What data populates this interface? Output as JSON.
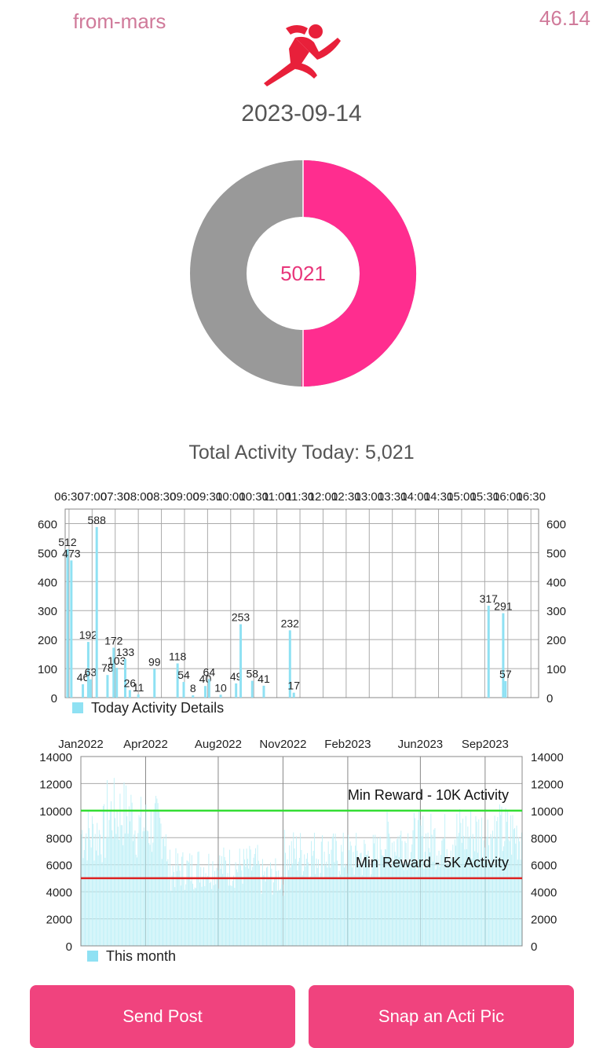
{
  "header": {
    "username": "from-mars",
    "balance": "46.14",
    "logo_icon": "runner-icon",
    "date": "2023-09-14",
    "accent_color": "#ff2d8f"
  },
  "donut": {
    "center_value": "5021",
    "filled_fraction": 0.502,
    "filled_color": "#ff2d8f",
    "remaining_color": "#999999"
  },
  "total_label": "Total Activity Today: 5,021",
  "chart_data": [
    {
      "type": "bar",
      "x_tick_labels": [
        "06:30",
        "07:00",
        "07:30",
        "08:00",
        "08:30",
        "09:00",
        "09:30",
        "10:00",
        "10:30",
        "11:00",
        "11:30",
        "12:00",
        "12:30",
        "13:00",
        "13:30",
        "14:00",
        "14:30",
        "15:00",
        "15:30",
        "16:00",
        "16:30"
      ],
      "x_range": [
        385,
        1000
      ],
      "x_ticks_at": [
        390,
        420,
        450,
        480,
        510,
        540,
        570,
        600,
        630,
        660,
        690,
        720,
        750,
        780,
        810,
        840,
        870,
        900,
        930,
        960,
        990
      ],
      "ylim": [
        0,
        650
      ],
      "y_ticks": [
        0,
        100,
        200,
        300,
        400,
        500,
        600
      ],
      "series": [
        {
          "name": "Today Activity Details",
          "color": "#8fe1f3",
          "x": [
            388,
            393,
            408,
            415,
            418,
            426,
            440,
            448,
            452,
            463,
            469,
            480,
            501,
            531,
            539,
            551,
            567,
            572,
            587,
            607,
            613,
            628,
            643,
            677
          ],
          "values": [
            512,
            473,
            46,
            192,
            63,
            588,
            78,
            172,
            103,
            133,
            26,
            11,
            99,
            118,
            54,
            8,
            40,
            64,
            10,
            49,
            253,
            58,
            41,
            232
          ]
        }
      ],
      "extra_points": {
        "x": [
          682,
          935,
          954,
          957
        ],
        "values": [
          17,
          317,
          291,
          57
        ]
      },
      "grid": true,
      "legend": "bottom-left"
    },
    {
      "type": "bar",
      "x_tick_labels": [
        "Jan2022",
        "Apr2022",
        "Aug2022",
        "Nov2022",
        "Feb2023",
        "Jun2023",
        "Sep2023"
      ],
      "x_range": [
        0,
        620
      ],
      "x_ticks_at": [
        0,
        91,
        193,
        284,
        375,
        477,
        568
      ],
      "ylim": [
        0,
        14000
      ],
      "y_ticks": [
        0,
        2000,
        4000,
        6000,
        8000,
        10000,
        12000,
        14000
      ],
      "series": [
        {
          "name": "This month",
          "color": "#bff0f7"
        }
      ],
      "reference_lines": [
        {
          "label": "Min Reward - 10K Activity",
          "value": 10000,
          "color": "#33dd33"
        },
        {
          "label": "Min Reward - 5K Activity",
          "value": 5000,
          "color": "#dd2222"
        }
      ],
      "period_levels": [
        {
          "from": 0,
          "to": 35,
          "value": 8500
        },
        {
          "from": 35,
          "to": 75,
          "value": 10000
        },
        {
          "from": 75,
          "to": 120,
          "value": 9000
        },
        {
          "from": 120,
          "to": 160,
          "value": 5800
        },
        {
          "from": 160,
          "to": 250,
          "value": 6000
        },
        {
          "from": 250,
          "to": 285,
          "value": 5200
        },
        {
          "from": 285,
          "to": 350,
          "value": 7000
        },
        {
          "from": 350,
          "to": 420,
          "value": 6800
        },
        {
          "from": 420,
          "to": 520,
          "value": 8000
        },
        {
          "from": 520,
          "to": 620,
          "value": 8500
        }
      ],
      "grid": true,
      "legend": "bottom-left"
    }
  ],
  "buttons": {
    "send_post": "Send Post",
    "snap_pic": "Snap an Acti Pic"
  }
}
